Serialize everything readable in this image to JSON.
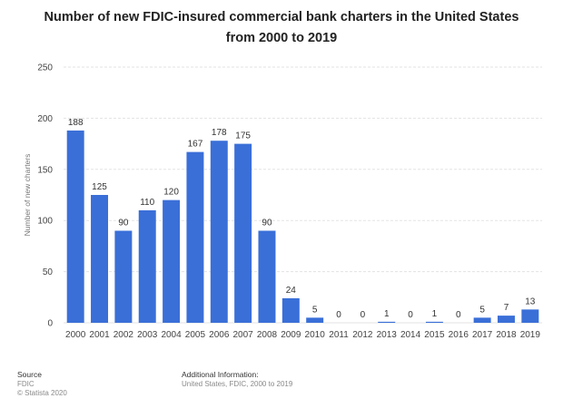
{
  "footer": {
    "source_heading": "Source",
    "source_name": "FDIC",
    "copyright": "© Statista 2020",
    "additional_heading": "Additional Information:",
    "additional_text": "United States, FDIC, 2000 to 2019"
  },
  "colors": {
    "bar": "#3a6fd8",
    "grid": "#e3e3e3"
  },
  "chart_data": {
    "type": "bar",
    "title": "Number of new FDIC-insured commercial bank charters in the United States from 2000 to 2019",
    "xlabel": "",
    "ylabel": "Number of new charters",
    "categories": [
      "2000",
      "2001",
      "2002",
      "2003",
      "2004",
      "2005",
      "2006",
      "2007",
      "2008",
      "2009",
      "2010",
      "2011",
      "2012",
      "2013",
      "2014",
      "2015",
      "2016",
      "2017",
      "2018",
      "2019"
    ],
    "values": [
      188,
      125,
      90,
      110,
      120,
      167,
      178,
      175,
      90,
      24,
      5,
      0,
      0,
      1,
      0,
      1,
      0,
      5,
      7,
      13
    ],
    "ylim": [
      0,
      250
    ],
    "yticks": [
      0,
      50,
      100,
      150,
      200,
      250
    ],
    "grid": true,
    "data_labels": true
  }
}
